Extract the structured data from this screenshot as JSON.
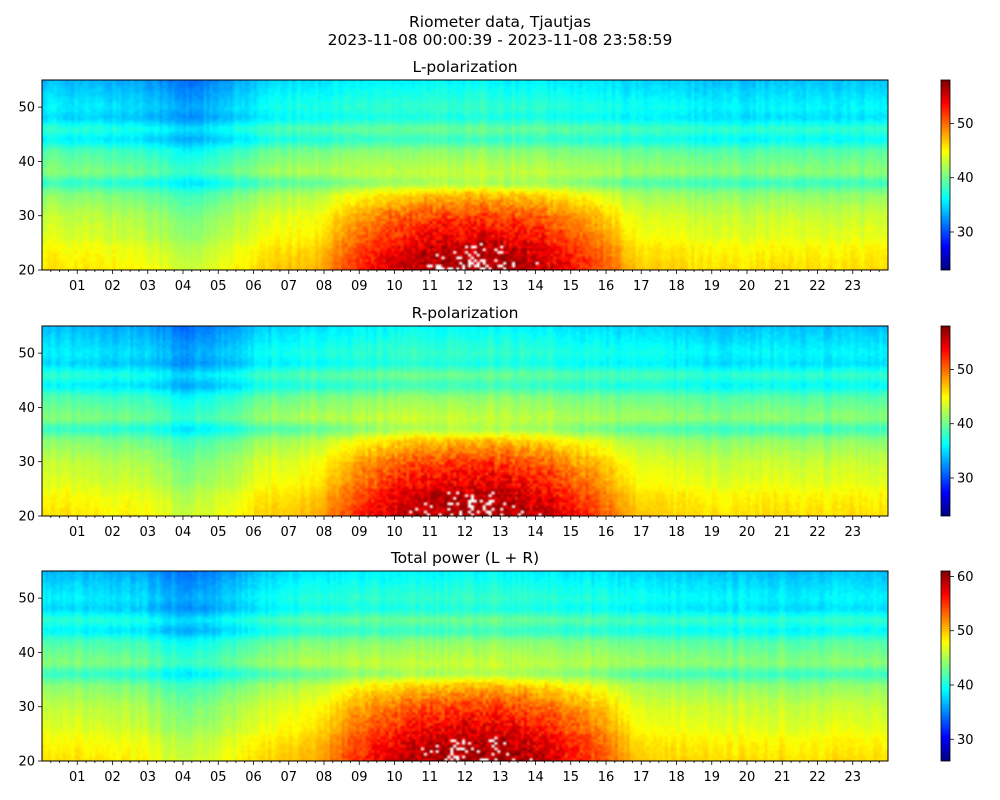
{
  "figure": {
    "title_line1": "Riometer data, Tjautjas",
    "title_line2": "2023-11-08 00:00:39 - 2023-11-08 23:58:59"
  },
  "colors": {
    "colormap": [
      "#00007f",
      "#0000ff",
      "#007fff",
      "#00ffff",
      "#7fff7f",
      "#ffff00",
      "#ff7f00",
      "#ff0000",
      "#7f0000"
    ],
    "saturated": "#ffffff"
  },
  "chart_data": [
    {
      "type": "heatmap",
      "title": "L-polarization",
      "x_tick_labels": [
        "01",
        "02",
        "03",
        "04",
        "05",
        "06",
        "07",
        "08",
        "09",
        "10",
        "11",
        "12",
        "13",
        "14",
        "15",
        "16",
        "17",
        "18",
        "19",
        "20",
        "21",
        "22",
        "23"
      ],
      "xlim": [
        0,
        24
      ],
      "ylim": [
        20,
        55
      ],
      "y_ticks": [
        20,
        30,
        40,
        50
      ],
      "colorbar_ticks": [
        30,
        40,
        50
      ],
      "colorbar_range": [
        23,
        58
      ],
      "quiet_level_by_y": [
        [
          20,
          46
        ],
        [
          24,
          45
        ],
        [
          26,
          44
        ],
        [
          30,
          43
        ],
        [
          34,
          41
        ],
        [
          36,
          38
        ],
        [
          38,
          41
        ],
        [
          42,
          39
        ],
        [
          44,
          36
        ],
        [
          46,
          38
        ],
        [
          48,
          35
        ],
        [
          50,
          36
        ],
        [
          55,
          34
        ]
      ],
      "hours_level": [
        [
          0,
          0
        ],
        [
          3,
          -1
        ],
        [
          4,
          -3
        ],
        [
          5,
          -2
        ],
        [
          6,
          0
        ],
        [
          7,
          1
        ],
        [
          10,
          2
        ],
        [
          13,
          2
        ],
        [
          16,
          1
        ],
        [
          19,
          0
        ],
        [
          24,
          0
        ]
      ],
      "enhancement": {
        "center_hour": 12.3,
        "hour_halfwidth": 4.6,
        "top_y": 38,
        "peak": 10
      }
    },
    {
      "type": "heatmap",
      "title": "R-polarization",
      "x_tick_labels": [
        "01",
        "02",
        "03",
        "04",
        "05",
        "06",
        "07",
        "08",
        "09",
        "10",
        "11",
        "12",
        "13",
        "14",
        "15",
        "16",
        "17",
        "18",
        "19",
        "20",
        "21",
        "22",
        "23"
      ],
      "xlim": [
        0,
        24
      ],
      "ylim": [
        20,
        55
      ],
      "y_ticks": [
        20,
        30,
        40,
        50
      ],
      "colorbar_ticks": [
        30,
        40,
        50
      ],
      "colorbar_range": [
        23,
        58
      ],
      "quiet_level_by_y": [
        [
          20,
          46
        ],
        [
          24,
          45
        ],
        [
          26,
          44
        ],
        [
          30,
          43
        ],
        [
          34,
          41
        ],
        [
          36,
          38
        ],
        [
          38,
          41
        ],
        [
          42,
          39
        ],
        [
          44,
          36
        ],
        [
          46,
          38
        ],
        [
          48,
          35
        ],
        [
          50,
          36
        ],
        [
          55,
          34
        ]
      ],
      "hours_level": [
        [
          0,
          0
        ],
        [
          3,
          -1
        ],
        [
          4,
          -3
        ],
        [
          5,
          -2
        ],
        [
          6,
          0
        ],
        [
          7,
          1
        ],
        [
          10,
          2
        ],
        [
          13,
          2
        ],
        [
          16,
          1
        ],
        [
          19,
          0
        ],
        [
          24,
          0
        ]
      ],
      "enhancement": {
        "center_hour": 12.3,
        "hour_halfwidth": 4.6,
        "top_y": 38,
        "peak": 10
      }
    },
    {
      "type": "heatmap",
      "title": "Total power (L + R)",
      "x_tick_labels": [
        "01",
        "02",
        "03",
        "04",
        "05",
        "06",
        "07",
        "08",
        "09",
        "10",
        "11",
        "12",
        "13",
        "14",
        "15",
        "16",
        "17",
        "18",
        "19",
        "20",
        "21",
        "22",
        "23"
      ],
      "xlim": [
        0,
        24
      ],
      "ylim": [
        20,
        55
      ],
      "y_ticks": [
        20,
        30,
        40,
        50
      ],
      "colorbar_ticks": [
        30,
        40,
        50,
        60
      ],
      "colorbar_range": [
        26,
        61
      ],
      "quiet_level_by_y": [
        [
          20,
          49
        ],
        [
          24,
          48
        ],
        [
          26,
          47
        ],
        [
          30,
          46
        ],
        [
          34,
          44
        ],
        [
          36,
          41
        ],
        [
          38,
          44
        ],
        [
          42,
          42
        ],
        [
          44,
          39
        ],
        [
          46,
          41
        ],
        [
          48,
          38
        ],
        [
          50,
          39
        ],
        [
          55,
          37
        ]
      ],
      "hours_level": [
        [
          0,
          0
        ],
        [
          3,
          -1
        ],
        [
          4,
          -3
        ],
        [
          5,
          -2
        ],
        [
          6,
          0
        ],
        [
          7,
          1
        ],
        [
          10,
          2
        ],
        [
          13,
          2
        ],
        [
          16,
          1
        ],
        [
          19,
          0
        ],
        [
          24,
          0
        ]
      ],
      "enhancement": {
        "center_hour": 12.3,
        "hour_halfwidth": 4.6,
        "top_y": 38,
        "peak": 10
      }
    }
  ]
}
